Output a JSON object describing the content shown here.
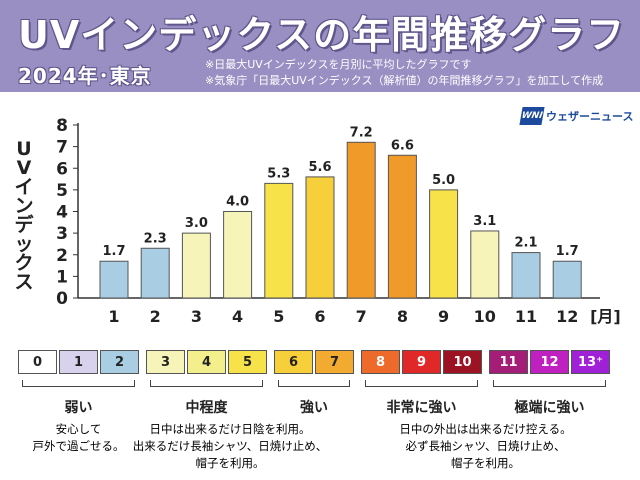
{
  "header": {
    "title": "UVインデックスの年間推移グラフ",
    "subtitle": "2024年･東京",
    "note1": "※日最大UVインデックスを月別に平均したグラフです",
    "note2": "※気象庁「日最大UVインデックス（解析値）の年間推移グラフ」を加工して作成"
  },
  "logo": {
    "mark": "WNI",
    "text": "ウェザーニュース"
  },
  "chart_data": {
    "type": "bar",
    "ylabel": "UVインデックス",
    "xlabel": "",
    "x_unit": "[月]",
    "ylim": [
      0,
      8
    ],
    "yticks": [
      0,
      1,
      2,
      3,
      4,
      5,
      6,
      7,
      8
    ],
    "categories": [
      "1",
      "2",
      "3",
      "4",
      "5",
      "6",
      "7",
      "8",
      "9",
      "10",
      "11",
      "12"
    ],
    "values": [
      1.7,
      2.3,
      3.0,
      4.0,
      5.3,
      5.6,
      7.2,
      6.6,
      5.0,
      3.1,
      2.1,
      1.7
    ],
    "value_labels": [
      "1.7",
      "2.3",
      "3.0",
      "4.0",
      "5.3",
      "5.6",
      "7.2",
      "6.6",
      "5.0",
      "3.1",
      "2.1",
      "1.7"
    ],
    "bar_colors": [
      "#a9cde3",
      "#a9cde3",
      "#f6f4b8",
      "#f6f4b8",
      "#f7e24a",
      "#f7cf3a",
      "#f09a2a",
      "#f09a2a",
      "#f7e24a",
      "#f6f4b8",
      "#a9cde3",
      "#a9cde3"
    ],
    "grid": false
  },
  "legend": {
    "cells": [
      {
        "label": "0",
        "bg": "#ffffff",
        "fg": "#222222"
      },
      {
        "label": "1",
        "bg": "#d8d2ec",
        "fg": "#222222"
      },
      {
        "label": "2",
        "bg": "#a9cde3",
        "fg": "#222222"
      },
      {
        "label": "3",
        "bg": "#f6f4b8",
        "fg": "#222222"
      },
      {
        "label": "4",
        "bg": "#f2ef8c",
        "fg": "#222222"
      },
      {
        "label": "5",
        "bg": "#f7e24a",
        "fg": "#222222"
      },
      {
        "label": "6",
        "bg": "#f7cf3a",
        "fg": "#222222"
      },
      {
        "label": "7",
        "bg": "#f2aa30",
        "fg": "#222222"
      },
      {
        "label": "8",
        "bg": "#ee6a2a",
        "fg": "#ffffff"
      },
      {
        "label": "9",
        "bg": "#e02828",
        "fg": "#ffffff"
      },
      {
        "label": "10",
        "bg": "#9c1424",
        "fg": "#ffffff"
      },
      {
        "label": "11",
        "bg": "#a41e78",
        "fg": "#ffffff"
      },
      {
        "label": "12",
        "bg": "#c020c0",
        "fg": "#ffffff"
      },
      {
        "label": "13⁺",
        "bg": "#a020d8",
        "fg": "#ffffff"
      }
    ],
    "categories": [
      {
        "name": "弱い",
        "desc": [
          "安心して",
          "戸外で過ごせる。"
        ]
      },
      {
        "name": "中程度",
        "desc": [
          "日中は出来るだけ日陰を利用。",
          "出来るだけ長袖シャツ、日焼け止め、",
          "帽子を利用。"
        ]
      },
      {
        "name": "強い",
        "desc": []
      },
      {
        "name": "非常に強い",
        "desc": [
          "日中の外出は出来るだけ控える。",
          "必ず長袖シャツ、日焼け止め、",
          "帽子を利用。"
        ]
      },
      {
        "name": "極端に強い",
        "desc": []
      }
    ]
  }
}
